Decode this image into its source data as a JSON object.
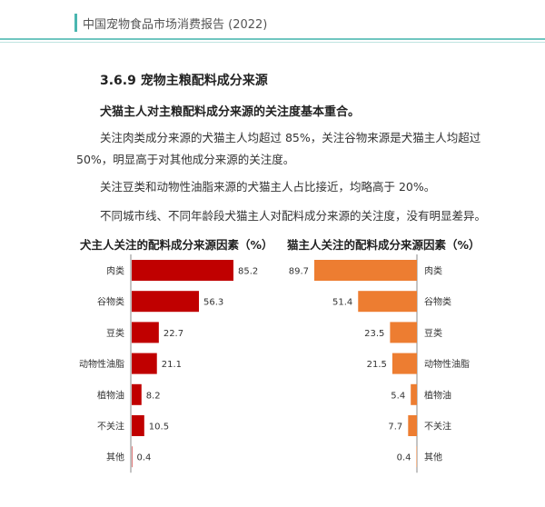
{
  "header": {
    "title": "中国宠物食品市场消费报告 (2022)"
  },
  "section": {
    "title": "3.6.9 宠物主粮配料成分来源",
    "subtitle": "犬猫主人对主粮配料成分来源的关注度基本重合。",
    "paragraphs": [
      "关注肉类成分来源的犬猫主人均超过 85%，关注谷物来源是犬猫主人均超过 50%，明显高于对其他成分来源的关注度。",
      "关注豆类和动物性油脂来源的犬猫主人占比接近，均略高于 20%。",
      "不同城市线、不同年龄段犬猫主人对配料成分来源的关注度，没有明显差异。"
    ]
  },
  "chart_data": [
    {
      "type": "bar",
      "orientation": "horizontal",
      "title": "犬主人关注的配料成分来源因素（%）",
      "categories": [
        "肉类",
        "谷物类",
        "豆类",
        "动物性油脂",
        "植物油",
        "不关注",
        "其他"
      ],
      "values": [
        85.2,
        56.3,
        22.7,
        21.1,
        8.2,
        10.5,
        0.4
      ],
      "color": "#c00000",
      "xlim": [
        0,
        90
      ],
      "grid": false,
      "legend": false
    },
    {
      "type": "bar",
      "orientation": "horizontal",
      "title": "猫主人关注的配料成分来源因素（%）",
      "categories": [
        "肉类",
        "谷物类",
        "豆类",
        "动物性油脂",
        "植物油",
        "不关注",
        "其他"
      ],
      "values": [
        89.7,
        51.4,
        23.5,
        21.5,
        5.4,
        7.7,
        0.4
      ],
      "color": "#ed7d31",
      "xlim": [
        0,
        90
      ],
      "direction": "right-to-left",
      "grid": false,
      "legend": false
    }
  ]
}
